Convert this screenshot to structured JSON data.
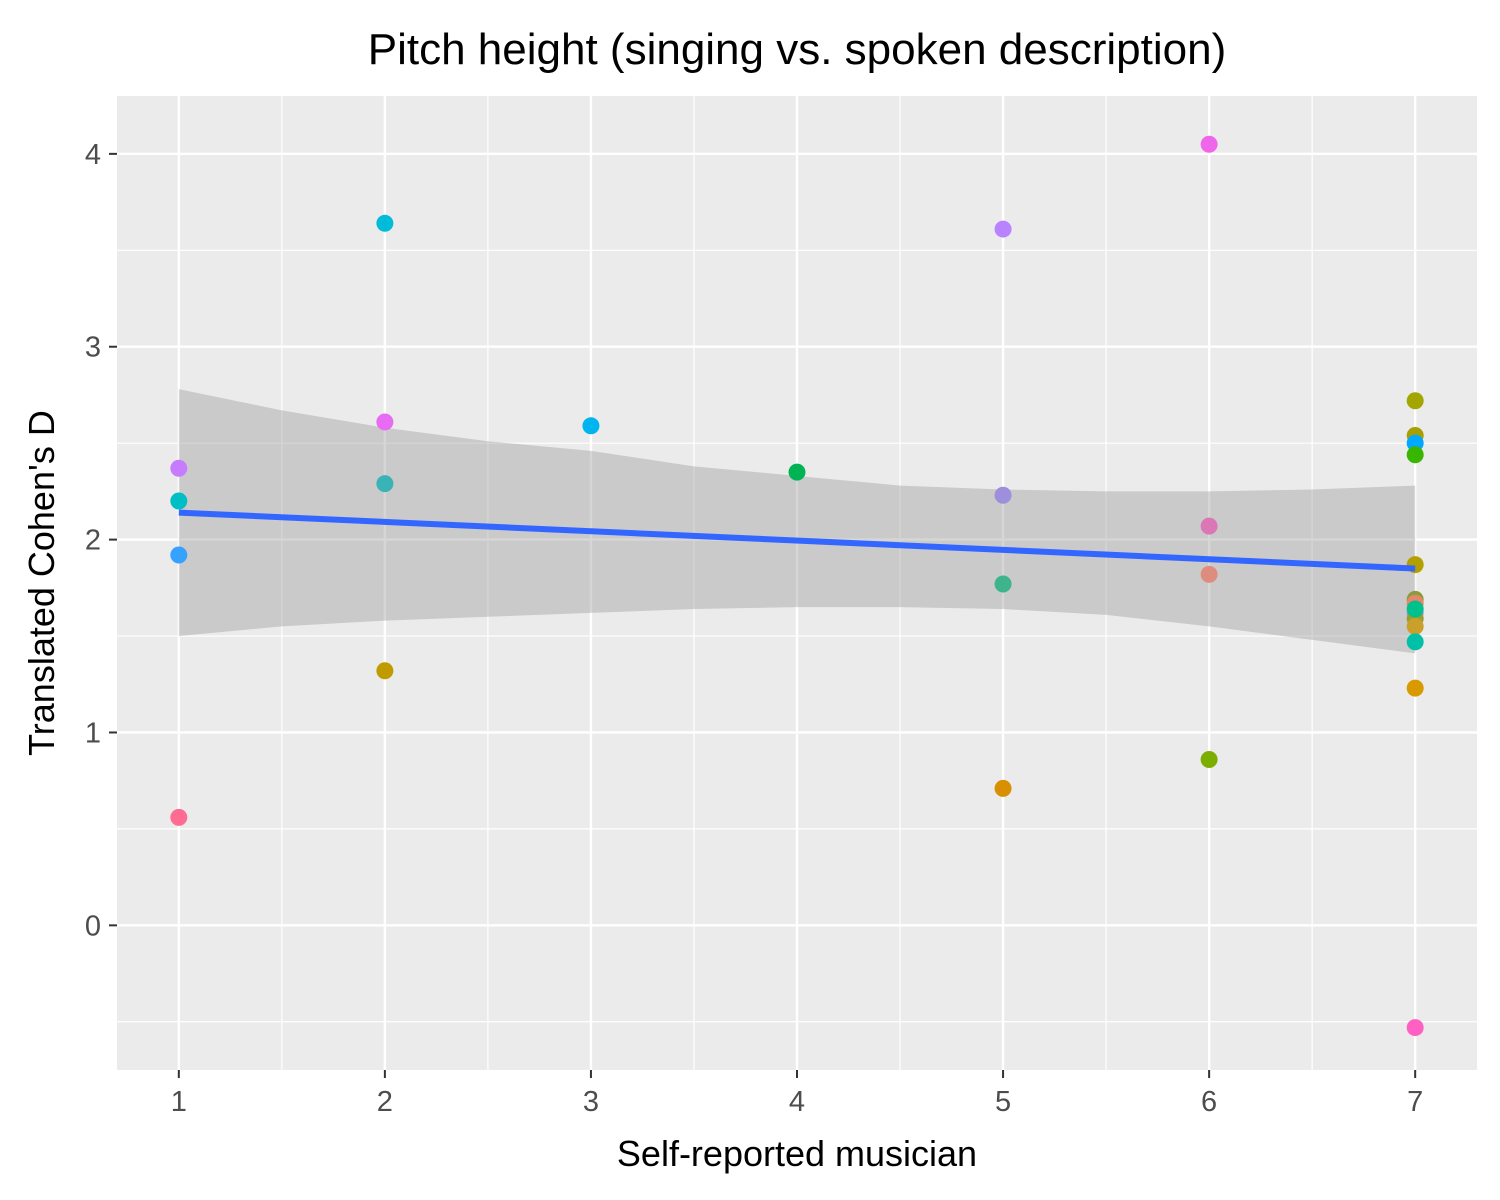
{
  "chart_data": {
    "type": "scatter",
    "title": "Pitch height (singing vs. spoken description)",
    "xlabel": "Self-reported musician",
    "ylabel": "Translated Cohen's D",
    "xlim": [
      0.7,
      7.3
    ],
    "ylim": [
      -0.75,
      4.3
    ],
    "x_ticks": [
      1,
      2,
      3,
      4,
      5,
      6,
      7
    ],
    "y_ticks": [
      0,
      1,
      2,
      3,
      4
    ],
    "x_tick_labels": [
      "1",
      "2",
      "3",
      "4",
      "5",
      "6",
      "7"
    ],
    "y_tick_labels": [
      "0",
      "1",
      "2",
      "3",
      "4"
    ],
    "grid": true,
    "legend": "none",
    "points": [
      {
        "x": 1,
        "y": 2.37,
        "color": "#C77CFF"
      },
      {
        "x": 1,
        "y": 2.2,
        "color": "#00BFC4"
      },
      {
        "x": 1,
        "y": 1.92,
        "color": "#35A2FF"
      },
      {
        "x": 1,
        "y": 0.56,
        "color": "#FF6C91"
      },
      {
        "x": 2,
        "y": 3.64,
        "color": "#00BCD8"
      },
      {
        "x": 2,
        "y": 2.61,
        "color": "#E76BF3"
      },
      {
        "x": 2,
        "y": 2.29,
        "color": "#39B3B5"
      },
      {
        "x": 2,
        "y": 1.32,
        "color": "#C09B00"
      },
      {
        "x": 3,
        "y": 2.59,
        "color": "#00B4EF"
      },
      {
        "x": 4,
        "y": 2.35,
        "color": "#00B454"
      },
      {
        "x": 5,
        "y": 3.61,
        "color": "#B983FF"
      },
      {
        "x": 5,
        "y": 2.23,
        "color": "#9D8FDB"
      },
      {
        "x": 5,
        "y": 1.77,
        "color": "#3DB48C"
      },
      {
        "x": 5,
        "y": 0.71,
        "color": "#D89000"
      },
      {
        "x": 6,
        "y": 4.05,
        "color": "#F066EA"
      },
      {
        "x": 6,
        "y": 2.07,
        "color": "#DB77B5"
      },
      {
        "x": 6,
        "y": 1.82,
        "color": "#DE8C7E"
      },
      {
        "x": 6,
        "y": 0.86,
        "color": "#7CAE00"
      },
      {
        "x": 7,
        "y": 2.72,
        "color": "#A3A500"
      },
      {
        "x": 7,
        "y": 2.54,
        "color": "#A8A000"
      },
      {
        "x": 7,
        "y": 2.5,
        "color": "#00A9FF"
      },
      {
        "x": 7,
        "y": 2.44,
        "color": "#39B600"
      },
      {
        "x": 7,
        "y": 1.87,
        "color": "#B3A000"
      },
      {
        "x": 7,
        "y": 1.69,
        "color": "#8A9D3C"
      },
      {
        "x": 7,
        "y": 1.67,
        "color": "#E8856A"
      },
      {
        "x": 7,
        "y": 1.62,
        "color": "#9590FF"
      },
      {
        "x": 7,
        "y": 1.59,
        "color": "#9B9D2E"
      },
      {
        "x": 7,
        "y": 1.55,
        "color": "#C8A02A"
      },
      {
        "x": 7,
        "y": 1.64,
        "color": "#00C08B"
      },
      {
        "x": 7,
        "y": 1.47,
        "color": "#00C1A7"
      },
      {
        "x": 7,
        "y": 1.23,
        "color": "#D89A00"
      },
      {
        "x": 7,
        "y": -0.53,
        "color": "#FF61C3"
      }
    ],
    "trend_line": {
      "color": "#3366FF",
      "x": [
        1,
        7
      ],
      "y": [
        2.14,
        1.85
      ]
    },
    "confidence_band": {
      "color": "#999999",
      "x": [
        1,
        1.5,
        2,
        2.5,
        3,
        3.5,
        4,
        4.5,
        5,
        5.5,
        6,
        6.5,
        7
      ],
      "upper": [
        2.78,
        2.67,
        2.58,
        2.51,
        2.46,
        2.38,
        2.33,
        2.28,
        2.26,
        2.25,
        2.25,
        2.26,
        2.28
      ],
      "lower": [
        1.5,
        1.55,
        1.58,
        1.6,
        1.62,
        1.64,
        1.65,
        1.65,
        1.64,
        1.61,
        1.55,
        1.48,
        1.41
      ]
    },
    "colors": {
      "panel_background": "#EBEBEB",
      "grid_major": "#FFFFFF",
      "grid_minor": "#FFFFFF",
      "tick_mark": "#333333"
    }
  }
}
